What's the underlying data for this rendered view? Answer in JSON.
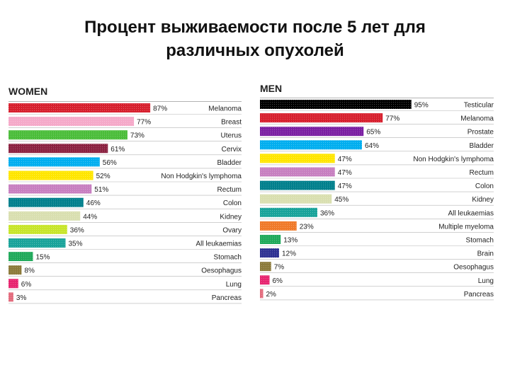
{
  "title": {
    "line1": "Процент выживаемости после 5 лет для",
    "line2": "различных опухолей"
  },
  "chart_data": [
    {
      "type": "bar",
      "orientation": "horizontal",
      "title": "WOMEN",
      "value_suffix": "%",
      "xlim": [
        0,
        100
      ],
      "categories": [
        "Melanoma",
        "Breast",
        "Uterus",
        "Cervix",
        "Bladder",
        "Non Hodgkin's lymphoma",
        "Rectum",
        "Colon",
        "Kidney",
        "Ovary",
        "All leukaemias",
        "Stomach",
        "Oesophagus",
        "Lung",
        "Pancreas"
      ],
      "values": [
        87,
        77,
        73,
        61,
        56,
        52,
        51,
        46,
        44,
        36,
        35,
        15,
        8,
        6,
        3
      ],
      "colors": [
        "#d7202e",
        "#f5a9c9",
        "#4bbd3a",
        "#8b2140",
        "#00aeef",
        "#ffe600",
        "#c77fc0",
        "#007f8c",
        "#d9dfb0",
        "#c7e52a",
        "#19a39a",
        "#1fa95a",
        "#8c7a3a",
        "#e7246f",
        "#e36b7d"
      ]
    },
    {
      "type": "bar",
      "orientation": "horizontal",
      "title": "MEN",
      "value_suffix": "%",
      "xlim": [
        0,
        100
      ],
      "categories": [
        "Testicular",
        "Melanoma",
        "Prostate",
        "Bladder",
        "Non Hodgkin's lymphoma",
        "Rectum",
        "Colon",
        "Kidney",
        "All leukaemias",
        "Multiple myeloma",
        "Stomach",
        "Brain",
        "Oesophagus",
        "Lung",
        "Pancreas"
      ],
      "values": [
        95,
        77,
        65,
        64,
        47,
        47,
        47,
        45,
        36,
        23,
        13,
        12,
        7,
        6,
        2
      ],
      "colors": [
        "#000000",
        "#d7202e",
        "#7b1fa2",
        "#00aeef",
        "#ffe600",
        "#c77fc0",
        "#007f8c",
        "#d9dfb0",
        "#19a39a",
        "#f07a2a",
        "#1fa95a",
        "#2e3192",
        "#8c7a3a",
        "#e7246f",
        "#e36b7d"
      ]
    }
  ]
}
